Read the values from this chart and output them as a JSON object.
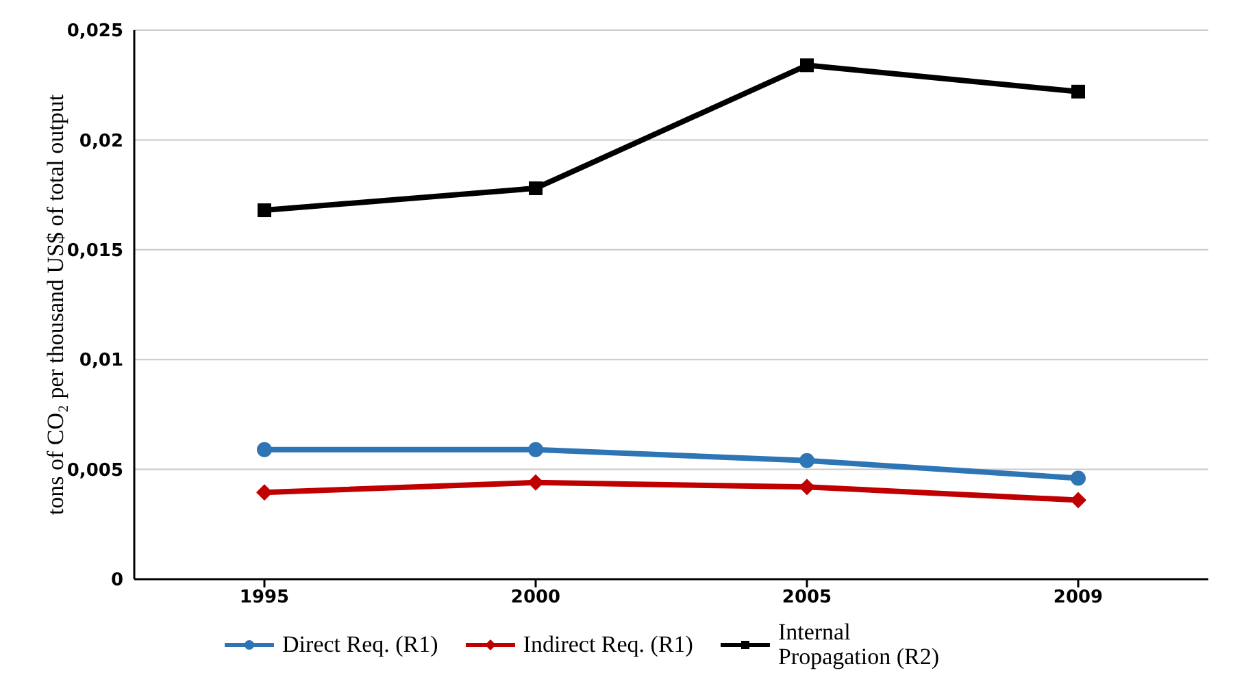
{
  "chart_data": {
    "type": "line",
    "ylabel": "tons of CO₂ per thousand US$ of total output",
    "categories": [
      "1995",
      "2000",
      "2005",
      "2009"
    ],
    "series": [
      {
        "name": "Direct Req. (R1)",
        "color": "#2e75b6",
        "marker": "circle",
        "values": [
          0.0059,
          0.0059,
          0.0054,
          0.0046
        ]
      },
      {
        "name": "Indirect Req. (R1)",
        "color": "#c00000",
        "marker": "diamond",
        "values": [
          0.00395,
          0.0044,
          0.0042,
          0.0036
        ]
      },
      {
        "name": "Internal Propagation (R2)",
        "color": "#000000",
        "marker": "square",
        "values": [
          0.0168,
          0.0178,
          0.0234,
          0.0222
        ]
      }
    ],
    "ylim": [
      0,
      0.025
    ],
    "yticks": [
      {
        "value": 0,
        "label": "0"
      },
      {
        "value": 0.005,
        "label": "0,005"
      },
      {
        "value": 0.01,
        "label": "0,01"
      },
      {
        "value": 0.015,
        "label": "0,015"
      },
      {
        "value": 0.02,
        "label": "0,02"
      },
      {
        "value": 0.025,
        "label": "0,025"
      }
    ],
    "grid": "y",
    "legend": "bottom",
    "line_style": "solid"
  }
}
